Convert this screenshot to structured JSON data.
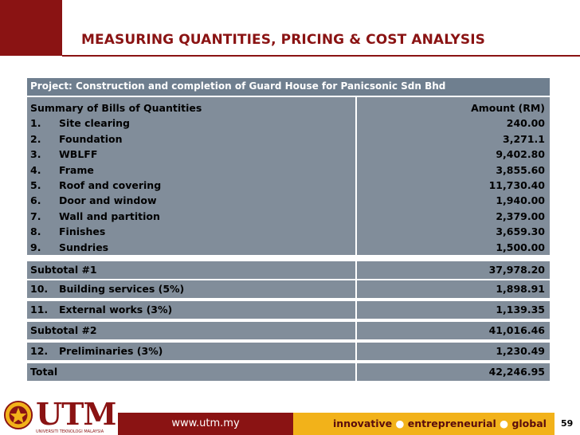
{
  "slide": {
    "title": "MEASURING QUANTITIES, PRICING & COST ANALYSIS",
    "project": "Project: Construction and completion of Guard House for Panicsonic Sdn Bhd",
    "summary_heading": "Summary of Bills of Quantities",
    "amount_heading": "Amount (RM)",
    "items": [
      {
        "num": "1.",
        "label": "Site clearing",
        "amount": "240.00"
      },
      {
        "num": "2.",
        "label": "Foundation",
        "amount": "3,271.1"
      },
      {
        "num": "3.",
        "label": "WBLFF",
        "amount": "9,402.80"
      },
      {
        "num": "4.",
        "label": "Frame",
        "amount": "3,855.60"
      },
      {
        "num": "5.",
        "label": "Roof and covering",
        "amount": "11,730.40"
      },
      {
        "num": "6.",
        "label": "Door and window",
        "amount": "1,940.00"
      },
      {
        "num": "7.",
        "label": "Wall and partition",
        "amount": "2,379.00"
      },
      {
        "num": "8.",
        "label": "Finishes",
        "amount": "3,659.30"
      },
      {
        "num": "9.",
        "label": "Sundries",
        "amount": "1,500.00"
      }
    ],
    "subtotal1": {
      "label": "Subtotal #1",
      "amount": "37,978.20"
    },
    "building_services": {
      "num": "10.",
      "label": "Building services (5%)",
      "amount": "1,898.91"
    },
    "external_works": {
      "num": "11.",
      "label": "External works (3%)",
      "amount": "1,139.35"
    },
    "subtotal2": {
      "label": "Subtotal #2",
      "amount": "41,016.46"
    },
    "preliminaries": {
      "num": "12.",
      "label": "Preliminaries (3%)",
      "amount": "1,230.49"
    },
    "total": {
      "label": "Total",
      "amount": "42,246.95"
    }
  },
  "footer": {
    "logo_text": "UTM",
    "logo_sub": "UNIVERSITI TEKNOLOGI MALAYSIA",
    "url": "www.utm.my",
    "tag1": "innovative",
    "tag2": "entrepreneurial",
    "tag3": "global",
    "dot": "●",
    "page_number": "59"
  },
  "colors": {
    "brand_maroon": "#8a1313",
    "brand_gold": "#f2b21a",
    "table_header": "#6f7f8f",
    "table_body": "#818d9a"
  }
}
